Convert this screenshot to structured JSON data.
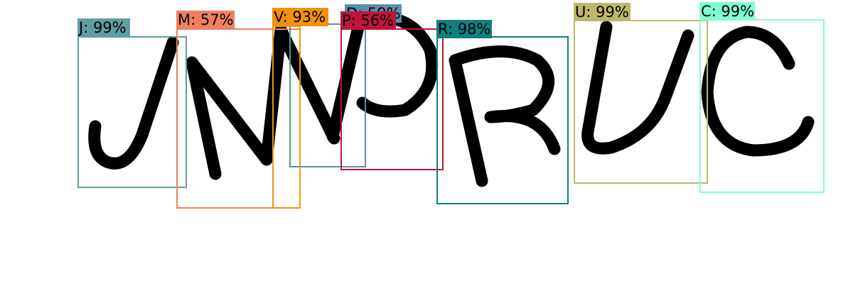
{
  "detections": [
    {
      "label": "J: 99%",
      "color": "#5f9ea0"
    },
    {
      "label": "M: 57%",
      "color": "#f08060"
    },
    {
      "label": "D: 59%",
      "color": "#5b8fa8"
    },
    {
      "label": "V: 93%",
      "color": "#f59009"
    },
    {
      "label": "P: 56%",
      "color": "#c0143c"
    },
    {
      "label": "R: 98%",
      "color": "#0f8080"
    },
    {
      "label": "U: 99%",
      "color": "#bdb76b"
    },
    {
      "label": "C: 99%",
      "color": "#7fffd4"
    }
  ]
}
